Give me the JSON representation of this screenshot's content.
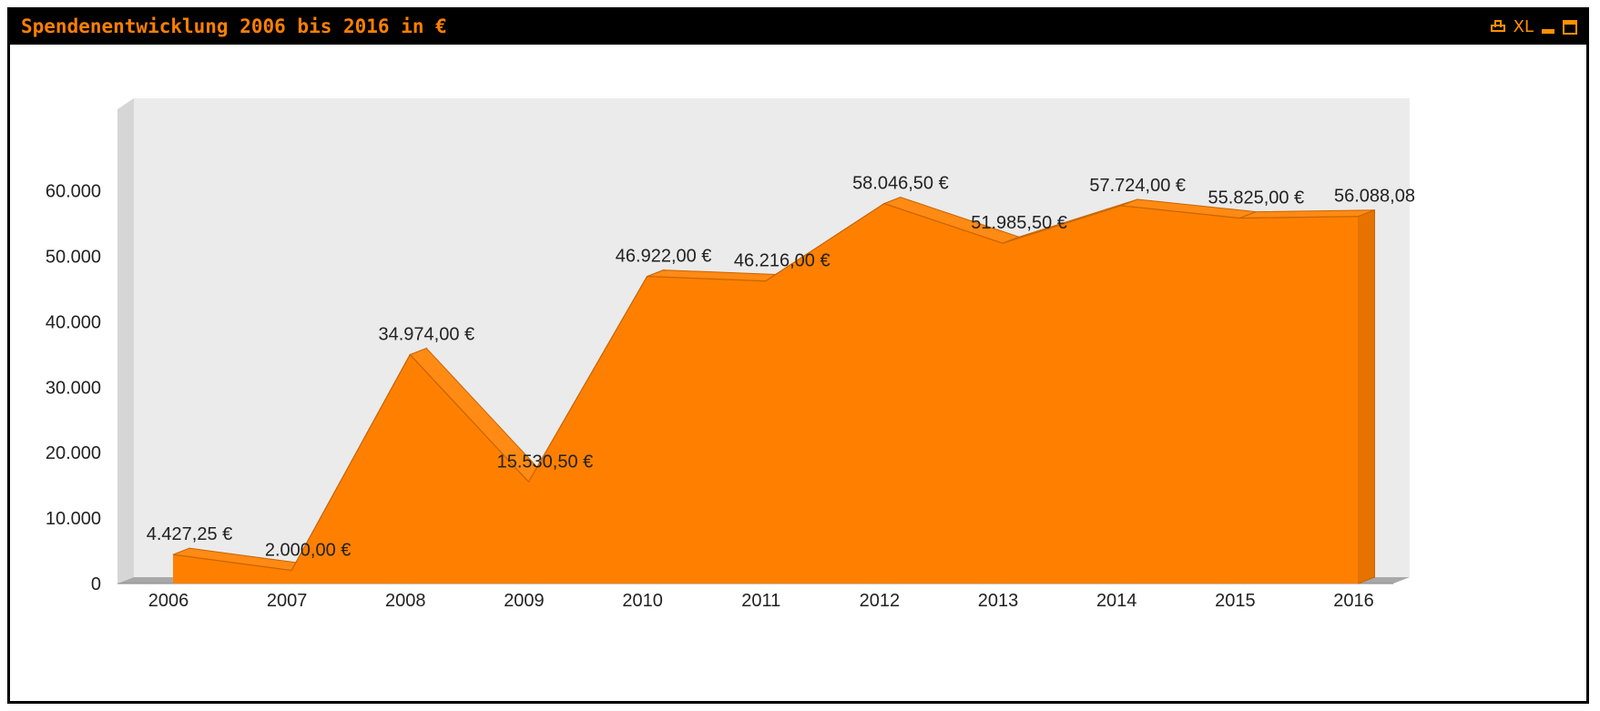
{
  "window": {
    "title": "Spendenentwicklung 2006 bis 2016 in €",
    "xl_label": "XL",
    "accent_color": "#ff8000",
    "icons": [
      "print-icon",
      "xl-icon",
      "minimize-icon",
      "maximize-icon"
    ]
  },
  "chart_data": {
    "type": "area",
    "title": "Spendenentwicklung 2006 bis 2016 in €",
    "xlabel": "",
    "ylabel": "",
    "categories": [
      "2006",
      "2007",
      "2008",
      "2009",
      "2010",
      "2011",
      "2012",
      "2013",
      "2014",
      "2015",
      "2016"
    ],
    "series": [
      {
        "color": "#ff8000",
        "values": [
          4427.25,
          2000.0,
          34974.0,
          15530.5,
          46922.0,
          46216.0,
          58046.5,
          51985.5,
          57724.0,
          55825.0,
          56088.08
        ],
        "labels": [
          "4.427,25 €",
          "2.000,00 €",
          "34.974,00 €",
          "15.530,50 €",
          "46.922,00 €",
          "46.216,00 €",
          "58.046,50 €",
          "51.985,50 €",
          "57.724,00 €",
          "55.825,00 €",
          "56.088,08"
        ]
      }
    ],
    "yticks": [
      "0",
      "10.000",
      "20.000",
      "30.000",
      "40.000",
      "50.000",
      "60.000"
    ],
    "ylim": [
      0,
      70000
    ],
    "grid": false,
    "legend": "none",
    "style": "3d"
  }
}
